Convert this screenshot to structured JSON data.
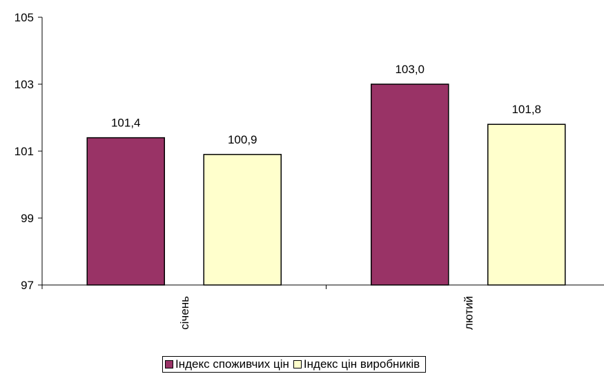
{
  "chart_data": {
    "type": "bar",
    "categories": [
      "січень",
      "лютий"
    ],
    "series": [
      {
        "name": "Індекс споживчих цін",
        "values": [
          101.4,
          103.0
        ],
        "labels": [
          "101,4",
          "103,0"
        ],
        "color": "#993366"
      },
      {
        "name": "Індекс цін виробників",
        "values": [
          100.9,
          101.8
        ],
        "labels": [
          "100,9",
          "101,8"
        ],
        "color": "#FFFFCC"
      }
    ],
    "title": "",
    "xlabel": "",
    "ylabel": "",
    "ylim": [
      97,
      105
    ],
    "yticks": [
      97,
      99,
      101,
      103,
      105
    ],
    "grid": false,
    "legend_position": "bottom"
  }
}
